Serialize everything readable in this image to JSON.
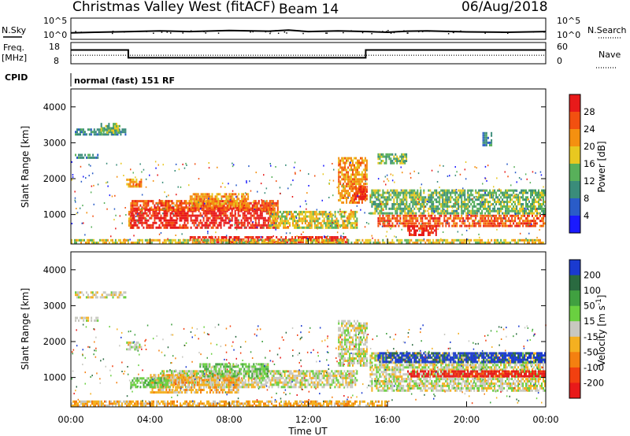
{
  "header": {
    "station": "Christmas Valley West (fitACF)",
    "beam": "Beam 14",
    "date": "06/Aug/2018"
  },
  "left_labels": {
    "nsky": "N.Sky",
    "freq_line1": "Freq.",
    "freq_line2": "[MHz]",
    "cpid": "CPID"
  },
  "right_labels": {
    "nsearch": "N.Search",
    "nave": "Nave"
  },
  "cpid_text": "normal (fast) 151 RF",
  "chart_data": [
    {
      "type": "line",
      "name": "noise",
      "series": [
        {
          "name": "N.Sky",
          "x": [
            0,
            1.2,
            3,
            4.5,
            6,
            8,
            10,
            11,
            12,
            13.5,
            15,
            16,
            17,
            18,
            20,
            22,
            24
          ],
          "y": [
            1.4,
            1.6,
            1.8,
            2.0,
            1.8,
            2.1,
            1.9,
            2.2,
            1.8,
            2.0,
            1.8,
            1.6,
            1.9,
            2.0,
            1.7,
            1.6,
            1.8
          ]
        }
      ],
      "ytick_left": [
        "10^5",
        "10^0"
      ],
      "ytick_right": [
        "10^5",
        "10^0"
      ]
    },
    {
      "type": "line",
      "name": "frequency",
      "series": [
        {
          "name": "Freq.",
          "x": [
            0,
            2.9,
            2.9,
            14.9,
            14.9,
            24
          ],
          "y": [
            14.5,
            14.5,
            10.8,
            10.8,
            14.5,
            14.5
          ]
        },
        {
          "name": "Nave",
          "x": [
            0,
            24
          ],
          "y": [
            24,
            24
          ]
        }
      ],
      "ytick_left": [
        "18",
        "8"
      ],
      "ytick_right": [
        "60",
        "0"
      ]
    },
    {
      "type": "heatmap",
      "name": "power",
      "ylabel": "Slant Range [km]",
      "yticks": [
        "4000",
        "3000",
        "2000",
        "1000"
      ],
      "colorbar_label": "Power [dB]",
      "colorbar_ticks": [
        "28",
        "24",
        "20",
        "16",
        "12",
        "8",
        "4"
      ],
      "colors": [
        "#1a1aff",
        "#2a5cc8",
        "#3a8c7a",
        "#58b05a",
        "#e8c820",
        "#f49010",
        "#f25010",
        "#e81a1a"
      ],
      "bands": [
        {
          "t0": 0.2,
          "t1": 2.8,
          "r0": 3200,
          "r1": 3400,
          "level": 2
        },
        {
          "t0": 0.2,
          "t1": 1.4,
          "r0": 2550,
          "r1": 2700,
          "level": 2
        },
        {
          "t0": 1.5,
          "t1": 2.5,
          "r0": 3250,
          "r1": 3550,
          "level": 3
        },
        {
          "t0": 2.8,
          "t1": 3.6,
          "r0": 1750,
          "r1": 2000,
          "level": 5
        },
        {
          "t0": 2.9,
          "t1": 3.2,
          "r0": 600,
          "r1": 1100,
          "level": 5
        },
        {
          "t0": 3.0,
          "t1": 10.5,
          "r0": 600,
          "r1": 1200,
          "level": 7
        },
        {
          "t0": 3.0,
          "t1": 10.5,
          "r0": 1100,
          "r1": 1400,
          "level": 6
        },
        {
          "t0": 6.0,
          "t1": 9.0,
          "r0": 1200,
          "r1": 1600,
          "level": 5
        },
        {
          "t0": 10.0,
          "t1": 14.5,
          "r0": 600,
          "r1": 1100,
          "level": 4
        },
        {
          "t0": 6.0,
          "t1": 14.0,
          "r0": 200,
          "r1": 400,
          "level": 7
        },
        {
          "t0": 13.5,
          "t1": 15.0,
          "r0": 1300,
          "r1": 2600,
          "level": 5
        },
        {
          "t0": 14.3,
          "t1": 15.0,
          "r0": 1400,
          "r1": 1800,
          "level": 7
        },
        {
          "t0": 15.1,
          "t1": 24.0,
          "r0": 1000,
          "r1": 1700,
          "level": 3
        },
        {
          "t0": 15.5,
          "t1": 24.0,
          "r0": 650,
          "r1": 1000,
          "level": 6
        },
        {
          "t0": 17.0,
          "t1": 18.5,
          "r0": 400,
          "r1": 700,
          "level": 7
        },
        {
          "t0": 0.0,
          "t1": 24.0,
          "r0": 180,
          "r1": 320,
          "level": 4
        },
        {
          "t0": 15.5,
          "t1": 17.0,
          "r0": 2400,
          "r1": 2700,
          "level": 3
        },
        {
          "t0": 20.8,
          "t1": 21.3,
          "r0": 2900,
          "r1": 3300,
          "level": 2
        }
      ]
    },
    {
      "type": "heatmap",
      "name": "velocity",
      "ylabel": "Slant Range [km]",
      "yticks": [
        "4000",
        "3000",
        "2000",
        "1000"
      ],
      "xticks": [
        "00:00",
        "04:00",
        "08:00",
        "12:00",
        "16:00",
        "20:00",
        "00:00"
      ],
      "xlabel": "Time UT",
      "colorbar_label": "Velocity [m s^-1]",
      "colorbar_ticks": [
        "200",
        "100",
        "50",
        "15",
        "-15",
        "-50",
        "-100",
        "-200"
      ],
      "colors": [
        "#1a3ad0",
        "#2a6a40",
        "#40a040",
        "#6ad040",
        "#c8c8c0",
        "#f4b020",
        "#f48010",
        "#f24010",
        "#e81a1a"
      ],
      "bands": [
        {
          "t0": 0.2,
          "t1": 2.8,
          "r0": 3200,
          "r1": 3400,
          "level": 4
        },
        {
          "t0": 0.2,
          "t1": 1.4,
          "r0": 2550,
          "r1": 2700,
          "level": 4
        },
        {
          "t0": 2.8,
          "t1": 3.6,
          "r0": 1750,
          "r1": 2000,
          "level": 4
        },
        {
          "t0": 4.5,
          "t1": 14.5,
          "r0": 700,
          "r1": 1200,
          "level": 4
        },
        {
          "t0": 4.0,
          "t1": 8.5,
          "r0": 550,
          "r1": 1100,
          "level": 5
        },
        {
          "t0": 6.5,
          "t1": 10.0,
          "r0": 1000,
          "r1": 1400,
          "level": 3
        },
        {
          "t0": 3.0,
          "t1": 5.0,
          "r0": 700,
          "r1": 1000,
          "level": 3
        },
        {
          "t0": 0.0,
          "t1": 16.0,
          "r0": 180,
          "r1": 350,
          "level": 5
        },
        {
          "t0": 13.5,
          "t1": 15.0,
          "r0": 1300,
          "r1": 2600,
          "level": 4
        },
        {
          "t0": 15.1,
          "t1": 24.0,
          "r0": 600,
          "r1": 1700,
          "level": 4
        },
        {
          "t0": 15.5,
          "t1": 24.0,
          "r0": 1400,
          "r1": 1700,
          "level": 0
        },
        {
          "t0": 17.0,
          "t1": 24.0,
          "r0": 1000,
          "r1": 1200,
          "level": 8
        }
      ]
    }
  ]
}
